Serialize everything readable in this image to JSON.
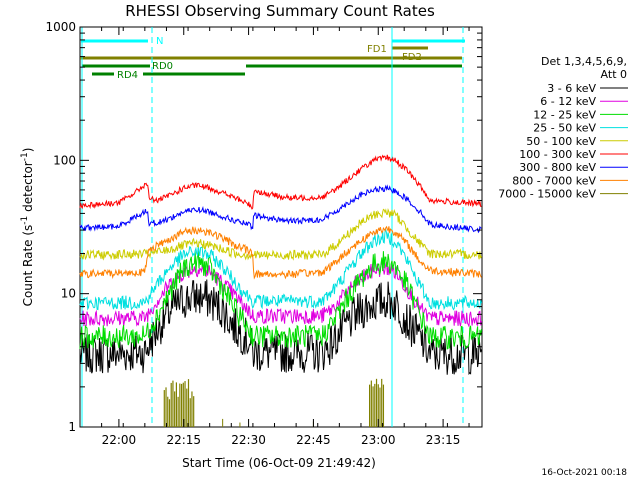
{
  "chart_data": {
    "type": "line",
    "title": "RHESSI Observing Summary Count Rates",
    "xlabel": "Start Time (06-Oct-09 21:49:42)",
    "ylabel_main": "Count Rate (s",
    "ylabel_sup1": "-1",
    "ylabel_mid": " detector",
    "ylabel_sup2": "-1",
    "ylabel_end": ")",
    "yscale": "log",
    "ylim": [
      1,
      1000
    ],
    "xlim_minutes": [
      -9,
      84
    ],
    "x_ticks": [
      {
        "t": 0,
        "label": "22:00"
      },
      {
        "t": 15,
        "label": "22:15"
      },
      {
        "t": 30,
        "label": "22:30"
      },
      {
        "t": 45,
        "label": "22:45"
      },
      {
        "t": 60,
        "label": "23:00"
      },
      {
        "t": 75,
        "label": "23:15"
      }
    ],
    "y_ticks": [
      {
        "v": 1,
        "label": "1"
      },
      {
        "v": 10,
        "label": "10"
      },
      {
        "v": 100,
        "label": "100"
      },
      {
        "v": 1000,
        "label": "1000"
      }
    ],
    "legend_header_1": "Det 1,3,4,5,6,9,",
    "legend_header_2": "Att 0",
    "timestamp": "16-Oct-2021 00:18",
    "series": [
      {
        "name": "3 - 6 keV",
        "color": "#000000",
        "points": [
          [
            -9,
            3.5
          ],
          [
            6,
            3.6
          ],
          [
            9,
            5.5
          ],
          [
            12,
            7.5
          ],
          [
            15,
            9
          ],
          [
            18,
            9.5
          ],
          [
            21,
            9
          ],
          [
            24,
            7.5
          ],
          [
            27,
            5.5
          ],
          [
            30,
            4.5
          ],
          [
            31,
            3.6
          ],
          [
            47,
            3.6
          ],
          [
            50,
            4.5
          ],
          [
            53,
            6
          ],
          [
            56,
            7.5
          ],
          [
            59,
            8.5
          ],
          [
            62,
            9
          ],
          [
            64,
            8.5
          ],
          [
            67,
            6
          ],
          [
            70,
            4.5
          ],
          [
            72,
            3.5
          ],
          [
            84,
            3.5
          ]
        ]
      },
      {
        "name": "6 - 12 keV",
        "color": "#e000e0",
        "points": [
          [
            -9,
            6.5
          ],
          [
            6,
            6.6
          ],
          [
            9,
            9
          ],
          [
            12,
            12
          ],
          [
            15,
            14.5
          ],
          [
            18,
            15.5
          ],
          [
            21,
            14.5
          ],
          [
            24,
            12
          ],
          [
            27,
            9.5
          ],
          [
            30,
            7.5
          ],
          [
            31,
            6.8
          ],
          [
            47,
            6.8
          ],
          [
            50,
            8
          ],
          [
            53,
            10.5
          ],
          [
            56,
            13
          ],
          [
            59,
            15
          ],
          [
            62,
            15.5
          ],
          [
            64,
            14.5
          ],
          [
            67,
            10.5
          ],
          [
            70,
            7.5
          ],
          [
            72,
            6.5
          ],
          [
            84,
            6.5
          ]
        ]
      },
      {
        "name": "12 - 25 keV",
        "color": "#00dd00",
        "points": [
          [
            -9,
            4.7
          ],
          [
            6,
            4.8
          ],
          [
            9,
            7
          ],
          [
            12,
            10.5
          ],
          [
            15,
            15.5
          ],
          [
            18,
            17.5
          ],
          [
            21,
            15.5
          ],
          [
            24,
            11
          ],
          [
            27,
            7.5
          ],
          [
            30,
            5.5
          ],
          [
            31,
            4.8
          ],
          [
            47,
            4.8
          ],
          [
            50,
            6.5
          ],
          [
            53,
            9.5
          ],
          [
            56,
            13
          ],
          [
            59,
            16.5
          ],
          [
            62,
            17.5
          ],
          [
            64,
            16
          ],
          [
            67,
            11
          ],
          [
            70,
            6.5
          ],
          [
            72,
            4.7
          ],
          [
            84,
            4.7
          ]
        ]
      },
      {
        "name": "25 - 50 keV",
        "color": "#00e0e0",
        "points": [
          [
            -9,
            8.5
          ],
          [
            6,
            8.6
          ],
          [
            9,
            12
          ],
          [
            12,
            16
          ],
          [
            15,
            19.5
          ],
          [
            18,
            21
          ],
          [
            21,
            19.5
          ],
          [
            24,
            16
          ],
          [
            27,
            12
          ],
          [
            30,
            9.5
          ],
          [
            31,
            8.8
          ],
          [
            47,
            8.8
          ],
          [
            50,
            11
          ],
          [
            53,
            15
          ],
          [
            56,
            20
          ],
          [
            59,
            25
          ],
          [
            62,
            27
          ],
          [
            64,
            25
          ],
          [
            67,
            17
          ],
          [
            70,
            11
          ],
          [
            72,
            8.5
          ],
          [
            84,
            8.5
          ]
        ]
      },
      {
        "name": "50 - 100 keV",
        "color": "#cccc00",
        "points": [
          [
            -9,
            19.5
          ],
          [
            6,
            19.8
          ],
          [
            9,
            20.5
          ],
          [
            12,
            21.5
          ],
          [
            15,
            23
          ],
          [
            18,
            24
          ],
          [
            21,
            23
          ],
          [
            24,
            21.5
          ],
          [
            27,
            20
          ],
          [
            30,
            19.5
          ],
          [
            31,
            19.5
          ],
          [
            47,
            19.5
          ],
          [
            50,
            23
          ],
          [
            53,
            28
          ],
          [
            56,
            34
          ],
          [
            59,
            39
          ],
          [
            62,
            41
          ],
          [
            64,
            39
          ],
          [
            67,
            30
          ],
          [
            70,
            23
          ],
          [
            72,
            20
          ],
          [
            84,
            19.5
          ]
        ]
      },
      {
        "name": "100 - 300 keV",
        "color": "#ff0000",
        "points": [
          [
            -9,
            46
          ],
          [
            0,
            48
          ],
          [
            4,
            58
          ],
          [
            6.5,
            68
          ],
          [
            7,
            52
          ],
          [
            9,
            50
          ],
          [
            12,
            55
          ],
          [
            15,
            62
          ],
          [
            18,
            65
          ],
          [
            21,
            62
          ],
          [
            24,
            57
          ],
          [
            27,
            52
          ],
          [
            30,
            47
          ],
          [
            31,
            44
          ],
          [
            31.2,
            60
          ],
          [
            34,
            56
          ],
          [
            40,
            52
          ],
          [
            47,
            53
          ],
          [
            50,
            60
          ],
          [
            53,
            72
          ],
          [
            56,
            86
          ],
          [
            59,
            100
          ],
          [
            62,
            105
          ],
          [
            64,
            100
          ],
          [
            67,
            82
          ],
          [
            70,
            62
          ],
          [
            72,
            50
          ],
          [
            84,
            47
          ]
        ]
      },
      {
        "name": "300 - 800 keV",
        "color": "#0000ff",
        "points": [
          [
            -9,
            31
          ],
          [
            0,
            32
          ],
          [
            4,
            38
          ],
          [
            6.5,
            42
          ],
          [
            7,
            34
          ],
          [
            9,
            34
          ],
          [
            12,
            37
          ],
          [
            15,
            41
          ],
          [
            18,
            43
          ],
          [
            21,
            41
          ],
          [
            24,
            38
          ],
          [
            27,
            35
          ],
          [
            30,
            33
          ],
          [
            31,
            31
          ],
          [
            31.2,
            39
          ],
          [
            34,
            37
          ],
          [
            40,
            35
          ],
          [
            47,
            36
          ],
          [
            50,
            41
          ],
          [
            53,
            48
          ],
          [
            56,
            55
          ],
          [
            59,
            60
          ],
          [
            62,
            61
          ],
          [
            64,
            59
          ],
          [
            67,
            50
          ],
          [
            70,
            40
          ],
          [
            72,
            33
          ],
          [
            84,
            30
          ]
        ]
      },
      {
        "name": "800 - 7000 keV",
        "color": "#ff8000",
        "points": [
          [
            -9,
            14
          ],
          [
            6,
            14.5
          ],
          [
            7,
            22
          ],
          [
            9,
            23
          ],
          [
            12,
            26
          ],
          [
            15,
            29
          ],
          [
            18,
            30
          ],
          [
            21,
            29
          ],
          [
            24,
            26
          ],
          [
            27,
            23
          ],
          [
            30,
            21
          ],
          [
            31,
            20
          ],
          [
            31.2,
            14
          ],
          [
            40,
            14
          ],
          [
            47,
            14.5
          ],
          [
            50,
            17
          ],
          [
            53,
            21
          ],
          [
            56,
            25
          ],
          [
            59,
            29
          ],
          [
            62,
            31
          ],
          [
            64,
            29
          ],
          [
            67,
            23
          ],
          [
            70,
            17
          ],
          [
            72,
            15
          ],
          [
            84,
            14
          ]
        ]
      },
      {
        "name": "7000 - 15000 keV",
        "color": "#808000",
        "points": []
      }
    ],
    "bars": {
      "fd_label_1": "FD1",
      "fd_label_2": "FD2",
      "n_label": "N",
      "rd0_label": "RD0",
      "rd4_label": "RD4"
    }
  }
}
